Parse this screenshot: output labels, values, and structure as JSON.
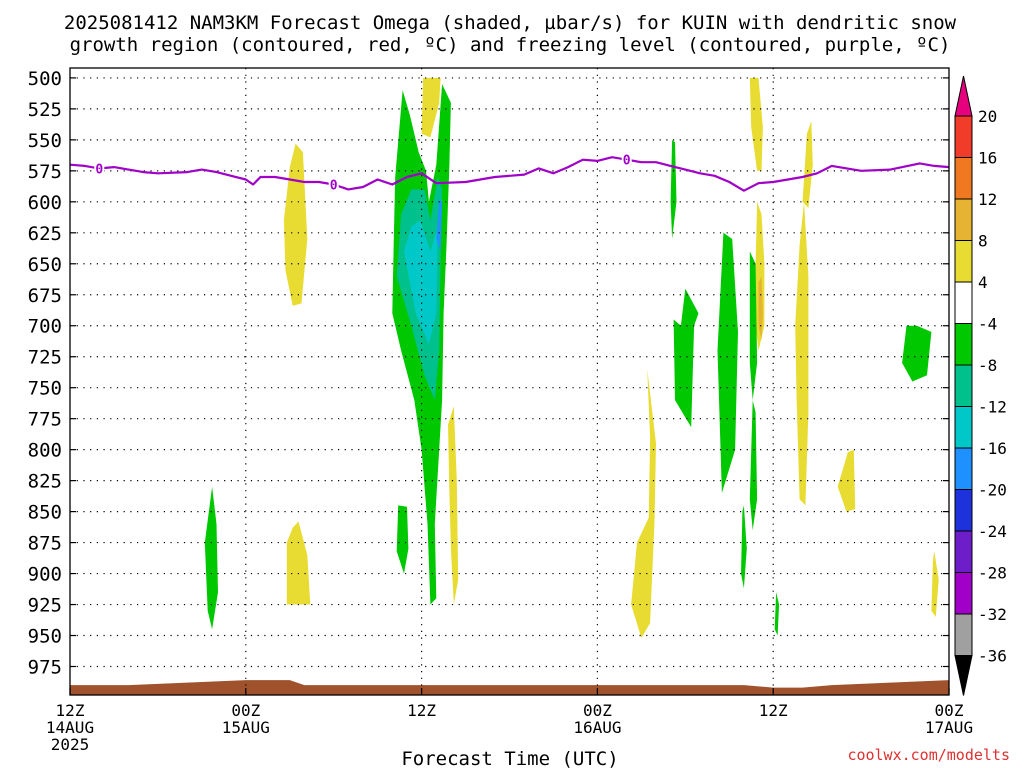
{
  "title": {
    "line1": "2025081412 NAM3KM Forecast Omega (shaded, µbar/s) for KUIN with dendritic snow",
    "line2": "growth region (contoured, red, ºC) and freezing level (contoured, purple, ºC)"
  },
  "credit": "coolwx.com/modelts",
  "colors": {
    "freezing_level": "#a000c8",
    "ground": "#a0522d",
    "grid": "#000000"
  },
  "chart_data": {
    "type": "time-height contour",
    "xlabel": "Forecast Time (UTC)",
    "x_range_hours": [
      0,
      60
    ],
    "y_axis": {
      "reversed": true,
      "range_hPa": [
        500,
        1000
      ]
    },
    "x_ticks": [
      {
        "hour": 0,
        "line1": "12Z",
        "line2": "14AUG",
        "line3": "2025"
      },
      {
        "hour": 12,
        "line1": "00Z",
        "line2": "15AUG",
        "line3": ""
      },
      {
        "hour": 24,
        "line1": "12Z",
        "line2": "",
        "line3": ""
      },
      {
        "hour": 36,
        "line1": "00Z",
        "line2": "16AUG",
        "line3": ""
      },
      {
        "hour": 48,
        "line1": "12Z",
        "line2": "",
        "line3": ""
      },
      {
        "hour": 60,
        "line1": "00Z",
        "line2": "17AUG",
        "line3": ""
      }
    ],
    "y_ticks": [
      500,
      525,
      550,
      575,
      600,
      625,
      650,
      675,
      700,
      725,
      750,
      775,
      800,
      825,
      850,
      875,
      900,
      925,
      950,
      975
    ],
    "colorbar": {
      "labels": [
        "20",
        "16",
        "12",
        "8",
        "4",
        "-4",
        "-8",
        "-12",
        "-16",
        "-20",
        "-24",
        "-28",
        "-32",
        "-36"
      ],
      "colors": [
        "#e6007e",
        "#f03c28",
        "#f07820",
        "#e6b432",
        "#e8dc32",
        "#ffffff",
        "#00c800",
        "#00c08c",
        "#00c8c8",
        "#1e90ff",
        "#1e32dc",
        "#6e1ec8",
        "#a000c8",
        "#a0a0a0"
      ]
    },
    "freezing_level": {
      "label": "0",
      "points": [
        [
          0,
          570
        ],
        [
          1,
          571
        ],
        [
          2,
          573
        ],
        [
          3,
          572
        ],
        [
          4,
          574
        ],
        [
          5,
          576
        ],
        [
          6,
          577
        ],
        [
          8,
          576
        ],
        [
          9,
          574
        ],
        [
          10,
          576
        ],
        [
          11,
          579
        ],
        [
          12,
          582
        ],
        [
          12.5,
          586
        ],
        [
          13,
          580
        ],
        [
          14,
          580
        ],
        [
          15,
          582
        ],
        [
          16,
          584
        ],
        [
          17,
          584
        ],
        [
          18,
          586
        ],
        [
          19,
          590
        ],
        [
          20,
          588
        ],
        [
          21,
          582
        ],
        [
          22,
          586
        ],
        [
          23,
          580
        ],
        [
          24,
          577
        ],
        [
          25,
          585
        ],
        [
          27,
          584
        ],
        [
          29,
          580
        ],
        [
          31,
          578
        ],
        [
          32,
          573
        ],
        [
          33,
          577
        ],
        [
          34,
          572
        ],
        [
          35,
          566
        ],
        [
          36,
          567
        ],
        [
          37,
          564
        ],
        [
          38,
          566
        ],
        [
          39,
          568
        ],
        [
          40,
          568
        ],
        [
          41,
          571
        ],
        [
          42,
          574
        ],
        [
          43,
          577
        ],
        [
          44,
          579
        ],
        [
          45,
          584
        ],
        [
          46,
          591
        ],
        [
          47,
          585
        ],
        [
          48,
          584
        ],
        [
          49,
          582
        ],
        [
          50,
          580
        ],
        [
          51,
          577
        ],
        [
          52,
          571
        ],
        [
          54,
          575
        ],
        [
          56,
          574
        ],
        [
          58,
          569
        ],
        [
          59,
          571
        ],
        [
          60,
          572
        ]
      ],
      "label_hours": [
        2,
        18,
        38
      ]
    },
    "omega_regions": [
      {
        "value": 4,
        "points": [
          [
            15.0,
            572
          ],
          [
            14.6,
            615
          ],
          [
            14.7,
            655
          ],
          [
            15.2,
            684
          ],
          [
            15.8,
            682
          ],
          [
            16.2,
            630
          ],
          [
            15.9,
            560
          ],
          [
            15.4,
            553
          ]
        ]
      },
      {
        "value": 4,
        "points": [
          [
            14.8,
            875
          ],
          [
            14.8,
            925
          ],
          [
            16.4,
            925
          ],
          [
            16.2,
            885
          ],
          [
            15.6,
            858
          ],
          [
            15.2,
            863
          ]
        ]
      },
      {
        "value": 4,
        "points": [
          [
            24.1,
            500
          ],
          [
            24.0,
            545
          ],
          [
            24.6,
            548
          ],
          [
            25.2,
            520
          ],
          [
            25.3,
            500
          ]
        ]
      },
      {
        "value": 4,
        "points": [
          [
            25.8,
            780
          ],
          [
            25.9,
            835
          ],
          [
            26.0,
            880
          ],
          [
            26.2,
            925
          ],
          [
            26.5,
            905
          ],
          [
            26.4,
            825
          ],
          [
            26.2,
            765
          ]
        ]
      },
      {
        "value": 4,
        "points": [
          [
            39.4,
            735
          ],
          [
            39.6,
            790
          ],
          [
            39.5,
            855
          ],
          [
            38.7,
            875
          ],
          [
            38.3,
            925
          ],
          [
            39.0,
            952
          ],
          [
            39.6,
            940
          ],
          [
            39.9,
            858
          ],
          [
            40.0,
            795
          ]
        ]
      },
      {
        "value": 4,
        "points": [
          [
            46.4,
            500
          ],
          [
            46.5,
            540
          ],
          [
            46.9,
            575
          ],
          [
            47.2,
            575
          ],
          [
            47.3,
            540
          ],
          [
            47.0,
            500
          ]
        ]
      },
      {
        "value": 4,
        "points": [
          [
            46.9,
            600
          ],
          [
            46.8,
            650
          ],
          [
            46.8,
            700
          ],
          [
            47.0,
            720
          ],
          [
            47.4,
            700
          ],
          [
            47.4,
            650
          ],
          [
            47.2,
            610
          ]
        ]
      },
      {
        "value": 8,
        "points": [
          [
            47.0,
            665
          ],
          [
            47.0,
            700
          ],
          [
            47.2,
            712
          ],
          [
            47.3,
            690
          ],
          [
            47.2,
            660
          ]
        ]
      },
      {
        "value": 4,
        "points": [
          [
            49.8,
            635
          ],
          [
            49.5,
            700
          ],
          [
            49.6,
            760
          ],
          [
            49.8,
            840
          ],
          [
            50.2,
            845
          ],
          [
            50.4,
            770
          ],
          [
            50.4,
            660
          ],
          [
            50.1,
            600
          ]
        ]
      },
      {
        "value": 4,
        "points": [
          [
            50.3,
            545
          ],
          [
            50.0,
            600
          ],
          [
            50.4,
            605
          ],
          [
            50.7,
            570
          ],
          [
            50.6,
            535
          ]
        ]
      },
      {
        "value": 4,
        "points": [
          [
            53.1,
            802
          ],
          [
            52.4,
            830
          ],
          [
            53.0,
            850
          ],
          [
            53.6,
            848
          ],
          [
            53.5,
            800
          ]
        ]
      },
      {
        "value": 4,
        "points": [
          [
            58.9,
            890
          ],
          [
            58.8,
            930
          ],
          [
            59.1,
            935
          ],
          [
            59.3,
            905
          ],
          [
            59.0,
            882
          ]
        ]
      },
      {
        "value": -4,
        "points": [
          [
            22.7,
            510
          ],
          [
            22.2,
            580
          ],
          [
            22.1,
            630
          ],
          [
            22.0,
            690
          ],
          [
            22.6,
            720
          ],
          [
            23.5,
            760
          ],
          [
            24.0,
            800
          ],
          [
            24.4,
            860
          ],
          [
            24.6,
            925
          ],
          [
            25.0,
            920
          ],
          [
            24.9,
            860
          ],
          [
            25.4,
            760
          ],
          [
            25.5,
            690
          ],
          [
            25.7,
            635
          ],
          [
            25.9,
            570
          ],
          [
            26.0,
            520
          ],
          [
            25.4,
            505
          ],
          [
            25.0,
            570
          ],
          [
            24.5,
            600
          ],
          [
            24.3,
            575
          ],
          [
            23.8,
            560
          ],
          [
            23.2,
            530
          ]
        ]
      },
      {
        "value": -8,
        "points": [
          [
            22.6,
            610
          ],
          [
            22.3,
            660
          ],
          [
            23.3,
            700
          ],
          [
            24.2,
            740
          ],
          [
            24.9,
            760
          ],
          [
            25.2,
            720
          ],
          [
            25.3,
            650
          ],
          [
            25.4,
            590
          ],
          [
            25.1,
            580
          ],
          [
            24.6,
            615
          ],
          [
            24.2,
            590
          ],
          [
            23.3,
            590
          ]
        ]
      },
      {
        "value": -12,
        "points": [
          [
            22.8,
            640
          ],
          [
            23.6,
            690
          ],
          [
            24.5,
            715
          ],
          [
            25.0,
            690
          ],
          [
            25.1,
            620
          ],
          [
            24.6,
            640
          ],
          [
            23.9,
            615
          ],
          [
            23.3,
            620
          ]
        ]
      },
      {
        "value": -16,
        "points": [
          [
            25.2,
            598
          ],
          [
            25.0,
            630
          ],
          [
            25.3,
            640
          ],
          [
            25.4,
            600
          ]
        ]
      },
      {
        "value": -4,
        "points": [
          [
            22.4,
            845
          ],
          [
            22.3,
            882
          ],
          [
            22.8,
            900
          ],
          [
            23.1,
            880
          ],
          [
            23.0,
            846
          ]
        ]
      },
      {
        "value": -4,
        "points": [
          [
            9.7,
            830
          ],
          [
            9.2,
            875
          ],
          [
            9.4,
            930
          ],
          [
            9.7,
            945
          ],
          [
            10.1,
            915
          ],
          [
            10.0,
            860
          ]
        ]
      },
      {
        "value": -4,
        "points": [
          [
            41.1,
            550
          ],
          [
            41.0,
            600
          ],
          [
            41.1,
            630
          ],
          [
            41.4,
            600
          ],
          [
            41.3,
            552
          ]
        ]
      },
      {
        "value": -4,
        "points": [
          [
            41.2,
            695
          ],
          [
            41.3,
            760
          ],
          [
            42.4,
            782
          ],
          [
            42.6,
            700
          ],
          [
            42.9,
            690
          ],
          [
            42.0,
            670
          ],
          [
            41.7,
            700
          ]
        ]
      },
      {
        "value": -4,
        "points": [
          [
            44.6,
            625
          ],
          [
            44.2,
            720
          ],
          [
            44.5,
            835
          ],
          [
            45.4,
            800
          ],
          [
            45.6,
            705
          ],
          [
            45.2,
            630
          ]
        ]
      },
      {
        "value": -4,
        "points": [
          [
            46.4,
            640
          ],
          [
            46.4,
            730
          ],
          [
            46.6,
            760
          ],
          [
            46.9,
            730
          ],
          [
            46.8,
            650
          ]
        ]
      },
      {
        "value": -4,
        "points": [
          [
            46.6,
            760
          ],
          [
            46.4,
            840
          ],
          [
            46.6,
            865
          ],
          [
            46.9,
            840
          ],
          [
            46.8,
            770
          ]
        ]
      },
      {
        "value": -4,
        "points": [
          [
            45.9,
            850
          ],
          [
            45.8,
            900
          ],
          [
            46.0,
            912
          ],
          [
            46.2,
            880
          ],
          [
            46.0,
            845
          ]
        ]
      },
      {
        "value": -4,
        "points": [
          [
            48.2,
            915
          ],
          [
            48.1,
            945
          ],
          [
            48.3,
            950
          ],
          [
            48.4,
            925
          ]
        ]
      },
      {
        "value": -4,
        "points": [
          [
            57.1,
            700
          ],
          [
            56.8,
            730
          ],
          [
            57.5,
            745
          ],
          [
            58.5,
            740
          ],
          [
            58.8,
            705
          ],
          [
            57.8,
            700
          ]
        ]
      }
    ],
    "ground": {
      "points": [
        [
          0,
          990
        ],
        [
          4,
          990
        ],
        [
          8,
          988
        ],
        [
          12,
          986
        ],
        [
          15,
          986
        ],
        [
          16,
          990
        ],
        [
          46,
          990
        ],
        [
          48,
          992
        ],
        [
          50,
          992
        ],
        [
          52,
          990
        ],
        [
          56,
          988
        ],
        [
          60,
          986
        ]
      ],
      "bottom_hPa": 995
    }
  }
}
